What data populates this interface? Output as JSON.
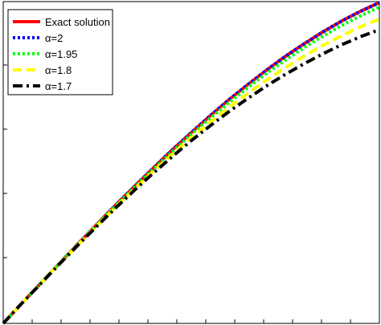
{
  "chart_data": {
    "type": "line",
    "title": "",
    "xlabel": "",
    "ylabel": "",
    "xlim": [
      0,
      1
    ],
    "ylim": [
      0,
      1
    ],
    "grid": false,
    "legend_position": "top-left",
    "x": [
      0,
      0.05,
      0.1,
      0.15,
      0.2,
      0.25,
      0.3,
      0.35,
      0.4,
      0.45,
      0.5,
      0.55,
      0.6,
      0.65,
      0.7,
      0.75,
      0.8,
      0.85,
      0.9,
      0.95,
      1.0
    ],
    "series": [
      {
        "name": "Exact solution",
        "color": "#ff0000",
        "style": "solid",
        "values": [
          0.0,
          0.063,
          0.125,
          0.187,
          0.249,
          0.309,
          0.369,
          0.427,
          0.484,
          0.54,
          0.593,
          0.645,
          0.695,
          0.742,
          0.787,
          0.83,
          0.869,
          0.906,
          0.94,
          0.97,
          0.997
        ]
      },
      {
        "name": "α=2",
        "color": "#0000ff",
        "style": "dotted",
        "values": [
          0.0,
          0.063,
          0.125,
          0.187,
          0.249,
          0.309,
          0.369,
          0.427,
          0.484,
          0.54,
          0.593,
          0.645,
          0.695,
          0.742,
          0.787,
          0.83,
          0.869,
          0.906,
          0.94,
          0.97,
          0.997
        ]
      },
      {
        "name": "α=1.95",
        "color": "#00ff00",
        "style": "dotted",
        "values": [
          0.0,
          0.063,
          0.125,
          0.187,
          0.248,
          0.308,
          0.367,
          0.424,
          0.481,
          0.535,
          0.588,
          0.638,
          0.686,
          0.733,
          0.777,
          0.818,
          0.857,
          0.893,
          0.926,
          0.956,
          0.983
        ]
      },
      {
        "name": "α=1.8",
        "color": "#ffff00",
        "style": "dashed",
        "values": [
          0.0,
          0.063,
          0.125,
          0.186,
          0.246,
          0.305,
          0.363,
          0.419,
          0.474,
          0.526,
          0.577,
          0.625,
          0.671,
          0.715,
          0.756,
          0.795,
          0.831,
          0.864,
          0.894,
          0.922,
          0.946
        ]
      },
      {
        "name": "α=1.7",
        "color": "#000000",
        "style": "dashdot",
        "values": [
          0.0,
          0.063,
          0.124,
          0.185,
          0.245,
          0.303,
          0.36,
          0.415,
          0.468,
          0.519,
          0.568,
          0.614,
          0.658,
          0.699,
          0.738,
          0.774,
          0.807,
          0.838,
          0.866,
          0.891,
          0.913
        ]
      }
    ]
  }
}
